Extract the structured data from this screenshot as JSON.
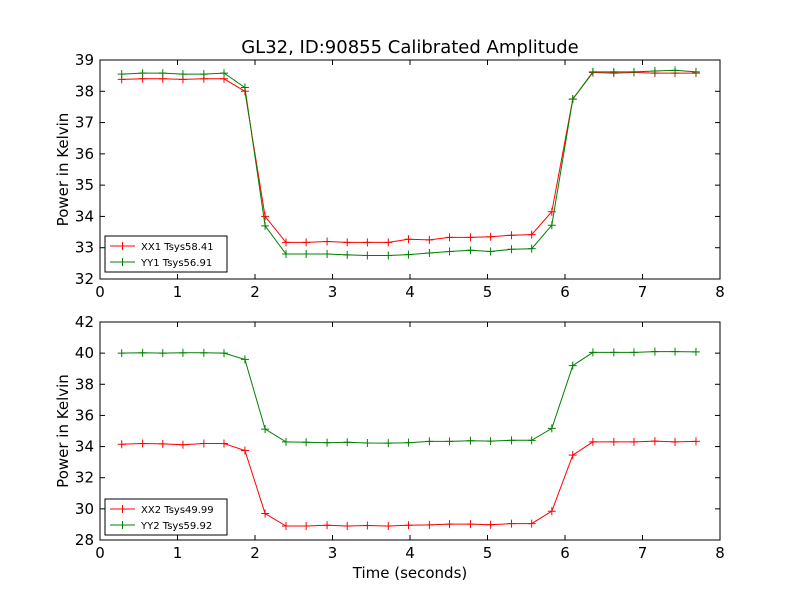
{
  "chart_data": {
    "title": "GL32, ID:90855 Calibrated Amplitude",
    "colors": {
      "red": "#ff0000",
      "green": "#008000"
    },
    "panels": [
      {
        "type": "line",
        "ylabel": "Power in Kelvin",
        "xlabel": "",
        "xlim": [
          0,
          8
        ],
        "ylim": [
          32,
          39
        ],
        "xticks": [
          "0",
          "1",
          "2",
          "3",
          "4",
          "5",
          "6",
          "7",
          "8"
        ],
        "yticks": [
          "32",
          "33",
          "34",
          "35",
          "36",
          "37",
          "38",
          "39"
        ],
        "legend_position": "lower-left",
        "series": [
          {
            "name": "XX1 Tsys58.41",
            "color": "red",
            "x": [
              0.28,
              0.55,
              0.81,
              1.07,
              1.34,
              1.6,
              1.87,
              2.13,
              2.4,
              2.66,
              2.93,
              3.19,
              3.45,
              3.72,
              3.98,
              4.25,
              4.51,
              4.78,
              5.04,
              5.31,
              5.57,
              5.83,
              6.1,
              6.36,
              6.63,
              6.89,
              7.16,
              7.42,
              7.69
            ],
            "y": [
              38.38,
              38.4,
              38.4,
              38.38,
              38.4,
              38.4,
              38.0,
              34.0,
              33.17,
              33.17,
              33.2,
              33.17,
              33.17,
              33.17,
              33.27,
              33.25,
              33.33,
              33.33,
              33.35,
              33.4,
              33.42,
              34.15,
              37.75,
              38.6,
              38.58,
              38.6,
              38.58,
              38.58,
              38.58
            ]
          },
          {
            "name": "YY1 Tsys56.91",
            "color": "green",
            "x": [
              0.28,
              0.55,
              0.81,
              1.07,
              1.34,
              1.6,
              1.87,
              2.13,
              2.4,
              2.66,
              2.93,
              3.19,
              3.45,
              3.72,
              3.98,
              4.25,
              4.51,
              4.78,
              5.04,
              5.31,
              5.57,
              5.83,
              6.1,
              6.36,
              6.63,
              6.89,
              7.16,
              7.42,
              7.69
            ],
            "y": [
              38.55,
              38.58,
              38.58,
              38.55,
              38.55,
              38.58,
              38.12,
              33.7,
              32.8,
              32.8,
              32.8,
              32.77,
              32.75,
              32.75,
              32.78,
              32.83,
              32.88,
              32.92,
              32.88,
              32.95,
              32.97,
              33.72,
              37.75,
              38.62,
              38.62,
              38.62,
              38.65,
              38.67,
              38.62
            ]
          }
        ]
      },
      {
        "type": "line",
        "ylabel": "Power in Kelvin",
        "xlabel": "Time (seconds)",
        "xlim": [
          0,
          8
        ],
        "ylim": [
          28,
          42
        ],
        "xticks": [
          "0",
          "1",
          "2",
          "3",
          "4",
          "5",
          "6",
          "7",
          "8"
        ],
        "yticks": [
          "28",
          "30",
          "32",
          "34",
          "36",
          "38",
          "40",
          "42"
        ],
        "legend_position": "lower-left",
        "series": [
          {
            "name": "XX2 Tsys49.99",
            "color": "red",
            "x": [
              0.28,
              0.55,
              0.81,
              1.07,
              1.34,
              1.6,
              1.87,
              2.13,
              2.4,
              2.66,
              2.93,
              3.19,
              3.45,
              3.72,
              3.98,
              4.25,
              4.51,
              4.78,
              5.04,
              5.31,
              5.57,
              5.83,
              6.1,
              6.36,
              6.63,
              6.89,
              7.16,
              7.42,
              7.69
            ],
            "y": [
              34.15,
              34.2,
              34.17,
              34.12,
              34.2,
              34.2,
              33.75,
              29.7,
              28.9,
              28.9,
              28.95,
              28.9,
              28.93,
              28.9,
              28.95,
              28.97,
              29.02,
              29.02,
              28.98,
              29.05,
              29.05,
              29.85,
              33.45,
              34.3,
              34.3,
              34.3,
              34.35,
              34.3,
              34.33
            ]
          },
          {
            "name": "YY2 Tsys59.92",
            "color": "green",
            "x": [
              0.28,
              0.55,
              0.81,
              1.07,
              1.34,
              1.6,
              1.87,
              2.13,
              2.4,
              2.66,
              2.93,
              3.19,
              3.45,
              3.72,
              3.98,
              4.25,
              4.51,
              4.78,
              5.04,
              5.31,
              5.57,
              5.83,
              6.1,
              6.36,
              6.63,
              6.89,
              7.16,
              7.42,
              7.69
            ],
            "y": [
              40.0,
              40.02,
              40.0,
              40.02,
              40.02,
              40.0,
              39.6,
              35.12,
              34.3,
              34.28,
              34.25,
              34.28,
              34.23,
              34.22,
              34.25,
              34.33,
              34.33,
              34.37,
              34.35,
              34.4,
              34.4,
              35.17,
              39.2,
              40.05,
              40.05,
              40.05,
              40.1,
              40.1,
              40.08
            ]
          }
        ]
      }
    ]
  }
}
